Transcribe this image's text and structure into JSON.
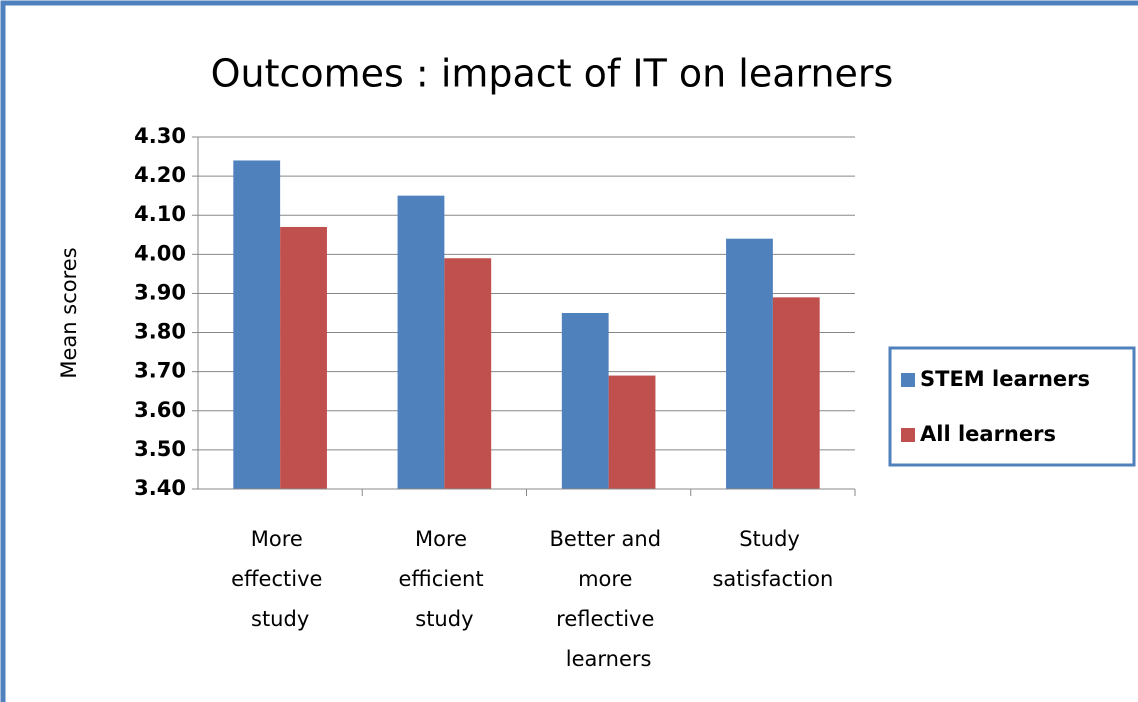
{
  "chart_data": {
    "type": "bar",
    "title": "Outcomes : impact of IT on learners",
    "y_label": "Mean scores",
    "categories": [
      "More effective study",
      "More efficient study",
      "Better and more reflective learners",
      "Study satisfaction"
    ],
    "series": [
      {
        "name": "STEM learners",
        "color": "#4f81bd",
        "values": [
          4.24,
          4.15,
          3.85,
          4.04
        ]
      },
      {
        "name": "All learners",
        "color": "#c0504d",
        "values": [
          4.07,
          3.99,
          3.69,
          3.89
        ]
      }
    ],
    "ylim": [
      3.4,
      4.3
    ],
    "yticks": [
      {
        "value": 3.4,
        "label": "3.40"
      },
      {
        "value": 3.5,
        "label": "3.50"
      },
      {
        "value": 3.6,
        "label": "3.60"
      },
      {
        "value": 3.7,
        "label": "3.70"
      },
      {
        "value": 3.8,
        "label": "3.80"
      },
      {
        "value": 3.9,
        "label": "3.90"
      },
      {
        "value": 4.0,
        "label": "4.00"
      },
      {
        "value": 4.1,
        "label": "4.10"
      },
      {
        "value": 4.2,
        "label": "4.20"
      },
      {
        "value": 4.3,
        "label": "4.30"
      }
    ],
    "grid": true,
    "legend": "right"
  }
}
